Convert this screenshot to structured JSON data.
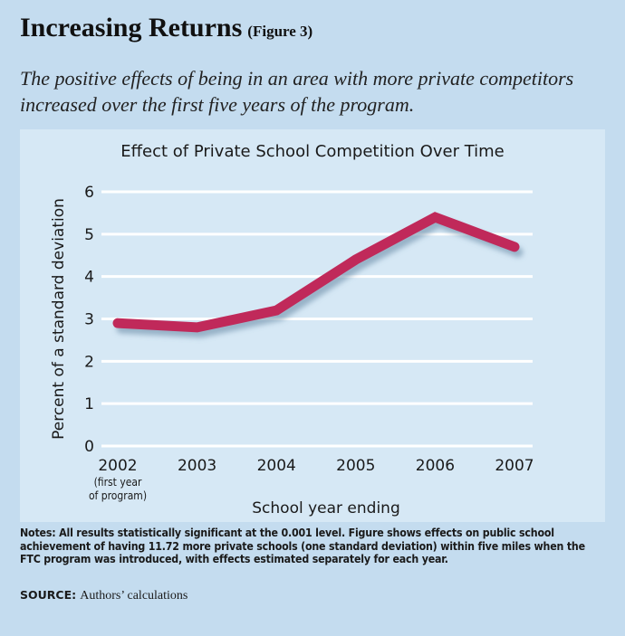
{
  "header": {
    "title": "Increasing Returns",
    "figure_label": "(Figure 3)",
    "subtitle": "The positive effects of being in an area with more private competitors increased over the first five years of the program."
  },
  "chart_data": {
    "type": "line",
    "title": "Effect of Private School Competition Over Time",
    "xlabel": "School year ending",
    "ylabel": "Percent of a standard deviation",
    "categories": [
      "2002",
      "2003",
      "2004",
      "2005",
      "2006",
      "2007"
    ],
    "category_sublabels": [
      "(first year",
      "of program)"
    ],
    "values": [
      2.9,
      2.8,
      3.2,
      4.4,
      5.4,
      4.7
    ],
    "ylim": [
      0,
      6
    ],
    "yticks": [
      "0",
      "1",
      "2",
      "3",
      "4",
      "5",
      "6"
    ],
    "grid": true,
    "line_color": "#c0295a",
    "background_color": "#d6e8f5"
  },
  "footer": {
    "notes": "Notes: All results statistically significant at the 0.001 level. Figure shows effects on public school achievement of having 11.72 more private schools (one standard deviation) within five miles when the FTC program was introduced, with effects estimated separately for each year.",
    "source_label": "SOURCE:",
    "source_text": "Authors’ calculations"
  }
}
